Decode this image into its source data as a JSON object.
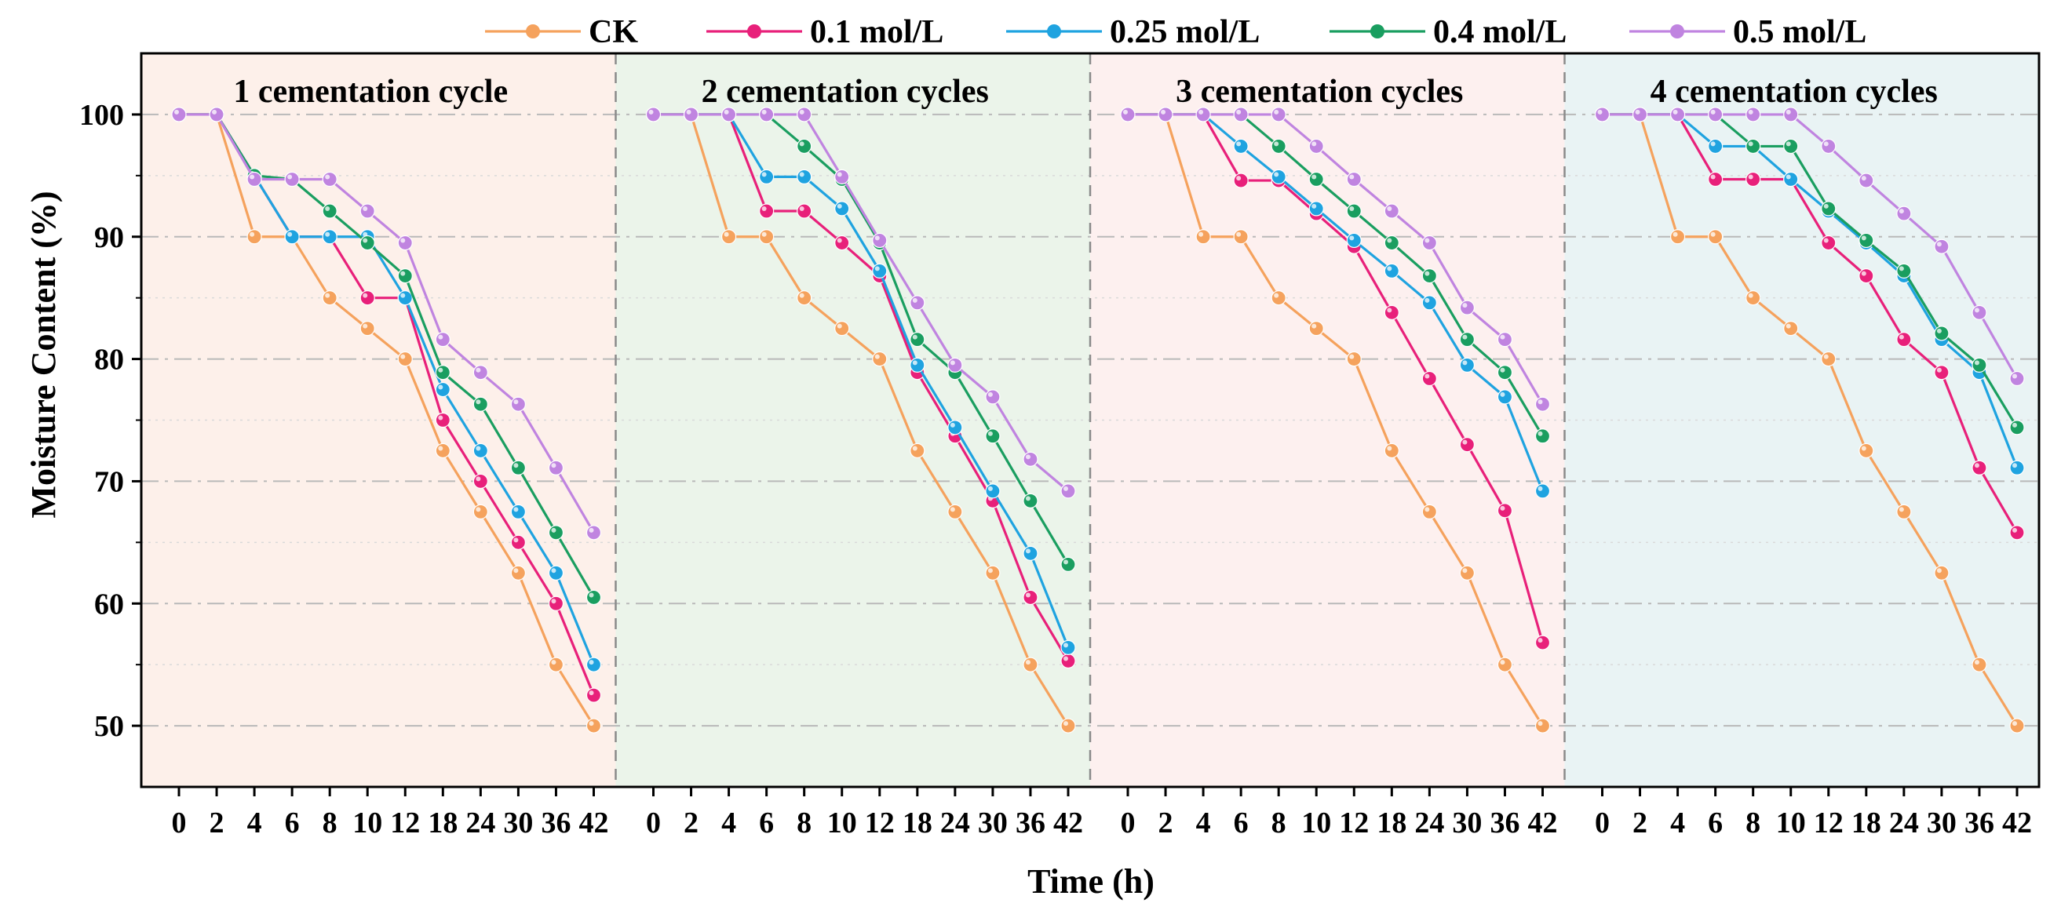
{
  "chart_data": {
    "type": "line",
    "title": "",
    "xlabel": "Time (h)",
    "ylabel": "Moisture Content (%)",
    "ylim": [
      45,
      105
    ],
    "yticks": [
      50,
      60,
      70,
      80,
      90,
      100
    ],
    "grid": true,
    "legend_position": "top",
    "x": [
      "0",
      "2",
      "4",
      "6",
      "8",
      "10",
      "12",
      "18",
      "24",
      "30",
      "36",
      "42"
    ],
    "series_styles": [
      {
        "name": "CK",
        "color": "#f5a25d"
      },
      {
        "name": "0.1 mol/L",
        "color": "#e8207a"
      },
      {
        "name": "0.25 mol/L",
        "color": "#1fa3e0"
      },
      {
        "name": "0.4 mol/L",
        "color": "#1a9e60"
      },
      {
        "name": "0.5 mol/L",
        "color": "#c084e0"
      }
    ],
    "panels": [
      {
        "title": "1 cementation cycle",
        "background": "#fdf0ea",
        "series": [
          {
            "name": "CK",
            "values": [
              100,
              100,
              90,
              90,
              85,
              82.5,
              80,
              72.5,
              67.5,
              62.5,
              55,
              50
            ]
          },
          {
            "name": "0.1 mol/L",
            "values": [
              100,
              100,
              95,
              90,
              90,
              85,
              85,
              75,
              70,
              65,
              60,
              52.5
            ]
          },
          {
            "name": "0.25 mol/L",
            "values": [
              100,
              100,
              95,
              90,
              90,
              90,
              85,
              77.5,
              72.5,
              67.5,
              62.5,
              55
            ]
          },
          {
            "name": "0.4 mol/L",
            "values": [
              100,
              100,
              95,
              94.7,
              92.1,
              89.5,
              86.8,
              78.9,
              76.3,
              71.1,
              65.8,
              60.5
            ]
          },
          {
            "name": "0.5 mol/L",
            "values": [
              100,
              100,
              94.7,
              94.7,
              94.7,
              92.1,
              89.5,
              81.6,
              78.9,
              76.3,
              71.1,
              65.8
            ]
          }
        ]
      },
      {
        "title": "2 cementation cycles",
        "background": "#ebf4ea",
        "series": [
          {
            "name": "CK",
            "values": [
              100,
              100,
              90,
              90,
              85,
              82.5,
              80,
              72.5,
              67.5,
              62.5,
              55,
              50
            ]
          },
          {
            "name": "0.1 mol/L",
            "values": [
              100,
              100,
              100,
              92.1,
              92.1,
              89.5,
              86.8,
              78.9,
              73.7,
              68.4,
              60.5,
              55.3
            ]
          },
          {
            "name": "0.25 mol/L",
            "values": [
              100,
              100,
              100,
              94.9,
              94.9,
              92.3,
              87.2,
              79.5,
              74.4,
              69.2,
              64.1,
              56.4
            ]
          },
          {
            "name": "0.4 mol/L",
            "values": [
              100,
              100,
              100,
              100,
              97.4,
              94.7,
              89.5,
              81.6,
              78.9,
              73.7,
              68.4,
              63.2
            ]
          },
          {
            "name": "0.5 mol/L",
            "values": [
              100,
              100,
              100,
              100,
              100,
              94.9,
              89.7,
              84.6,
              79.5,
              76.9,
              71.8,
              69.2
            ]
          }
        ]
      },
      {
        "title": "3 cementation cycles",
        "background": "#fdf0ef",
        "series": [
          {
            "name": "CK",
            "values": [
              100,
              100,
              90,
              90,
              85,
              82.5,
              80,
              72.5,
              67.5,
              62.5,
              55,
              50
            ]
          },
          {
            "name": "0.1 mol/L",
            "values": [
              100,
              100,
              100,
              94.6,
              94.6,
              91.9,
              89.2,
              83.8,
              78.4,
              73,
              67.6,
              56.8
            ]
          },
          {
            "name": "0.25 mol/L",
            "values": [
              100,
              100,
              100,
              97.4,
              94.9,
              92.3,
              89.7,
              87.2,
              84.6,
              79.5,
              76.9,
              69.2
            ]
          },
          {
            "name": "0.4 mol/L",
            "values": [
              100,
              100,
              100,
              100,
              97.4,
              94.7,
              92.1,
              89.5,
              86.8,
              81.6,
              78.9,
              73.7
            ]
          },
          {
            "name": "0.5 mol/L",
            "values": [
              100,
              100,
              100,
              100,
              100,
              97.4,
              94.7,
              92.1,
              89.5,
              84.2,
              81.6,
              76.3
            ]
          }
        ]
      },
      {
        "title": "4 cementation cycles",
        "background": "#e9f3f4",
        "series": [
          {
            "name": "CK",
            "values": [
              100,
              100,
              90,
              90,
              85,
              82.5,
              80,
              72.5,
              67.5,
              62.5,
              55,
              50
            ]
          },
          {
            "name": "0.1 mol/L",
            "values": [
              100,
              100,
              100,
              94.7,
              94.7,
              94.7,
              89.5,
              86.8,
              81.6,
              78.9,
              71.1,
              65.8
            ]
          },
          {
            "name": "0.25 mol/L",
            "values": [
              100,
              100,
              100,
              97.4,
              97.4,
              94.7,
              92.1,
              89.5,
              86.8,
              81.6,
              78.9,
              71.1
            ]
          },
          {
            "name": "0.4 mol/L",
            "values": [
              100,
              100,
              100,
              100,
              97.4,
              97.4,
              92.3,
              89.7,
              87.2,
              82.1,
              79.5,
              74.4
            ]
          },
          {
            "name": "0.5 mol/L",
            "values": [
              100,
              100,
              100,
              100,
              100,
              100,
              97.4,
              94.6,
              91.9,
              89.2,
              83.8,
              78.4
            ]
          }
        ]
      }
    ]
  }
}
